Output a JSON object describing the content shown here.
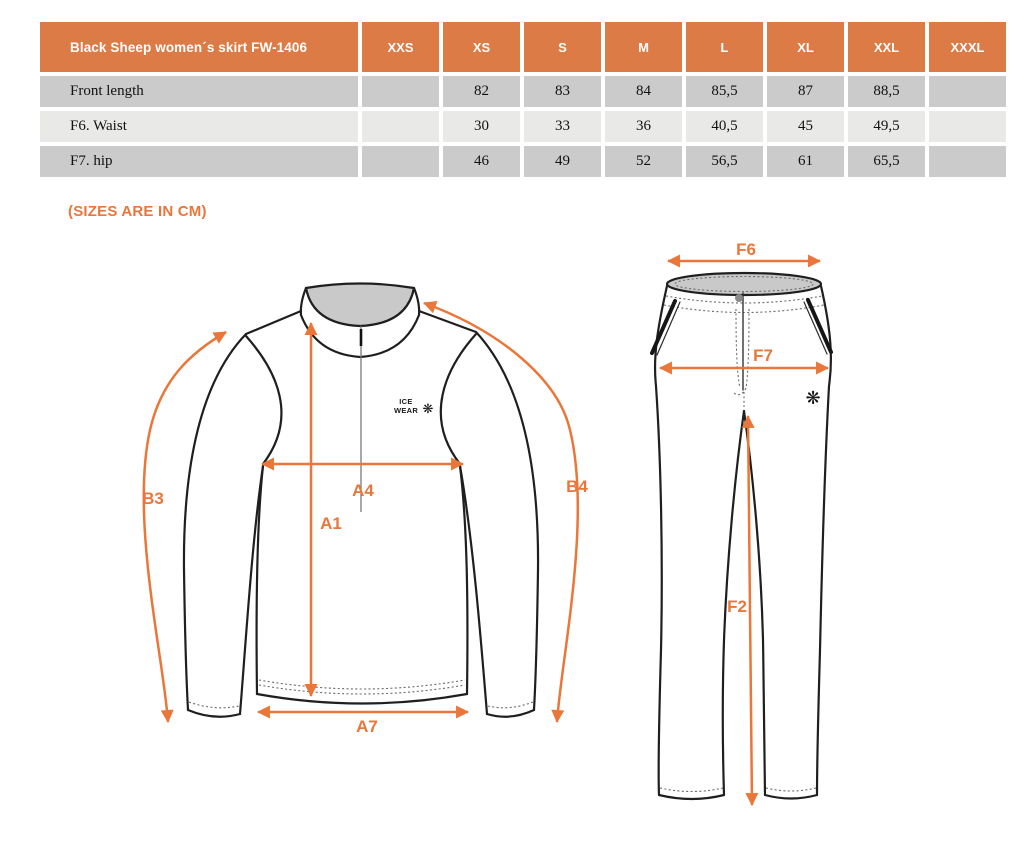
{
  "size_table": {
    "product": "Black Sheep women´s skirt FW-1406",
    "size_headers": [
      "XXS",
      "XS",
      "S",
      "M",
      "L",
      "XL",
      "XXL",
      "XXXL"
    ],
    "rows": [
      {
        "label": "Front length",
        "values": [
          "",
          "82",
          "83",
          "84",
          "85,5",
          "87",
          "88,5",
          ""
        ]
      },
      {
        "label": "F6. Waist",
        "values": [
          "",
          "30",
          "33",
          "36",
          "40,5",
          "45",
          "49,5",
          ""
        ]
      },
      {
        "label": "F7. hip",
        "values": [
          "",
          "46",
          "49",
          "52",
          "56,5",
          "61",
          "65,5",
          ""
        ]
      }
    ]
  },
  "note": "(SIZES ARE IN CM)",
  "shirt_diagram": {
    "labels": {
      "b3": "B3",
      "b4": "B4",
      "a4": "A4",
      "a1": "A1",
      "a7": "A7"
    },
    "logo": {
      "line1": "ICE",
      "line2": "WEAR",
      "snowflake_icon": "❋"
    }
  },
  "pants_diagram": {
    "labels": {
      "f6": "F6",
      "f7": "F7",
      "f2": "F2"
    },
    "snowflake_icon": "❋"
  },
  "colors": {
    "header_bg": "#DC7B45",
    "header_text": "#FFFFFF",
    "row_dark": "#CBCBCB",
    "row_light": "#E9E9E7",
    "accent_orange": "#EA763A",
    "outline": "#1F1F1F"
  }
}
